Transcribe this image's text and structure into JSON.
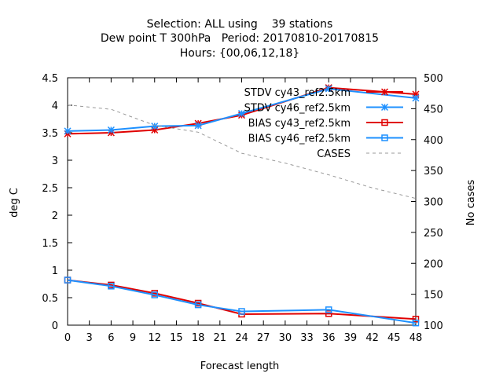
{
  "chart_data": {
    "type": "line",
    "title_lines": [
      "Selection: ALL using    39 stations",
      "Dew point T 300hPa   Period: 20170810-20170815",
      "Hours: {00,06,12,18}"
    ],
    "xlabel": "Forecast length",
    "ylabel": "deg C",
    "y2label": "No cases",
    "xlim": [
      0,
      48
    ],
    "ylim": [
      0,
      4.5
    ],
    "y2lim": [
      100,
      500
    ],
    "xticks": [
      0,
      3,
      6,
      9,
      12,
      15,
      18,
      21,
      24,
      27,
      30,
      33,
      36,
      39,
      42,
      45,
      48
    ],
    "yticks": [
      "0",
      "0.5",
      "1",
      "1.5",
      "2",
      "2.5",
      "3",
      "3.5",
      "4",
      "4.5"
    ],
    "y2ticks": [
      "100",
      "150",
      "200",
      "250",
      "300",
      "350",
      "400",
      "450",
      "500"
    ],
    "grid": false,
    "legend_position": "top-right",
    "series": [
      {
        "name": "STDV cy43_ref2.5km",
        "color": "#e00000",
        "marker": "star",
        "axis": "left",
        "x": [
          0,
          6,
          12,
          18,
          24,
          36,
          48
        ],
        "y": [
          3.48,
          3.5,
          3.55,
          3.67,
          3.82,
          4.32,
          4.2
        ]
      },
      {
        "name": "STDV cy46_ref2.5km",
        "color": "#1e90ff",
        "marker": "star",
        "axis": "left",
        "x": [
          0,
          6,
          12,
          18,
          24,
          36,
          48
        ],
        "y": [
          3.53,
          3.55,
          3.62,
          3.63,
          3.85,
          4.3,
          4.13
        ]
      },
      {
        "name": "BIAS cy43_ref2.5km",
        "color": "#e00000",
        "marker": "square",
        "axis": "left",
        "x": [
          0,
          6,
          12,
          18,
          24,
          36,
          48
        ],
        "y": [
          0.82,
          0.73,
          0.58,
          0.4,
          0.2,
          0.21,
          0.11
        ]
      },
      {
        "name": "BIAS cy46_ref2.5km",
        "color": "#1e90ff",
        "marker": "square",
        "axis": "left",
        "x": [
          0,
          6,
          12,
          18,
          24,
          36,
          48
        ],
        "y": [
          0.82,
          0.71,
          0.55,
          0.37,
          0.25,
          0.28,
          0.04
        ]
      },
      {
        "name": "CASES",
        "color": "#999999",
        "marker": "none",
        "dashed": true,
        "axis": "right",
        "x": [
          0,
          6,
          12,
          18,
          24,
          30,
          36,
          42,
          48
        ],
        "y": [
          456,
          449,
          423,
          412,
          378,
          362,
          343,
          322,
          305
        ]
      }
    ]
  }
}
